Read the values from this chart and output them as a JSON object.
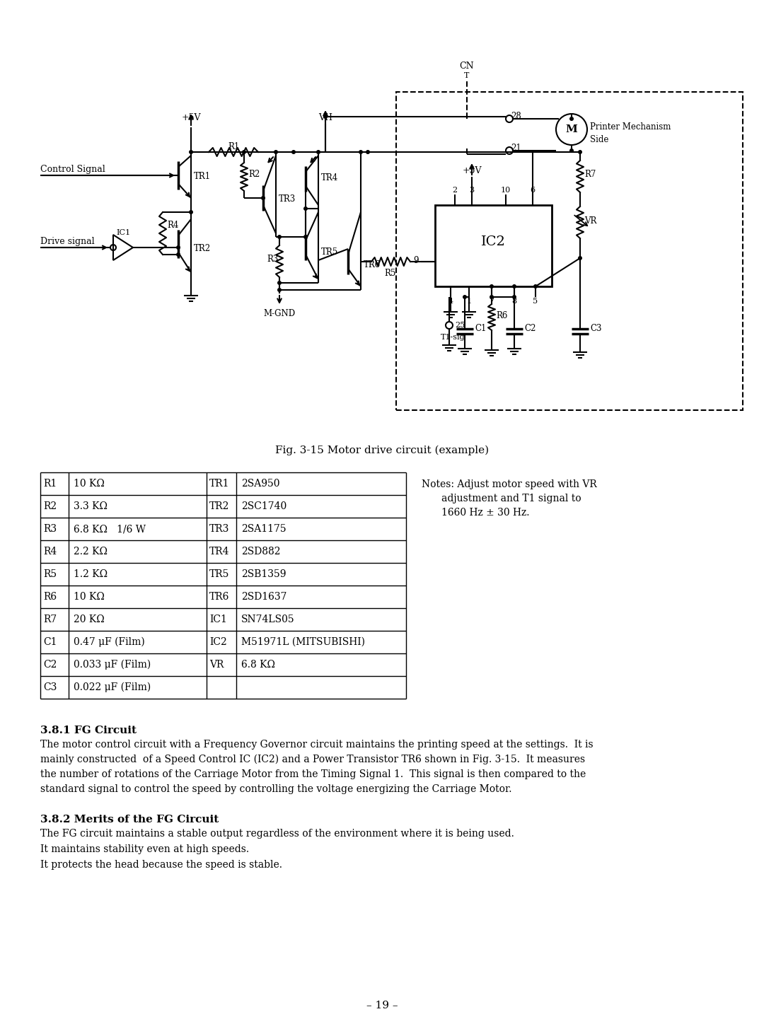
{
  "page_bg": "#ffffff",
  "fig_caption": "Fig. 3-15 Motor drive circuit (example)",
  "table_left": [
    [
      "R1",
      "10 KΩ"
    ],
    [
      "R2",
      "3.3 KΩ"
    ],
    [
      "R3",
      "6.8 KΩ   1/6 W"
    ],
    [
      "R4",
      "2.2 KΩ"
    ],
    [
      "R5",
      "1.2 KΩ"
    ],
    [
      "R6",
      "10 KΩ"
    ],
    [
      "R7",
      "20 KΩ"
    ],
    [
      "C1",
      "0.47 μF (Film)"
    ],
    [
      "C2",
      "0.033 μF (Film)"
    ],
    [
      "C3",
      "0.022 μF (Film)"
    ]
  ],
  "table_right": [
    [
      "TR1",
      "2SA950"
    ],
    [
      "TR2",
      "2SC1740"
    ],
    [
      "TR3",
      "2SA1175"
    ],
    [
      "TR4",
      "2SD882"
    ],
    [
      "TR5",
      "2SB1359"
    ],
    [
      "TR6",
      "2SD1637"
    ],
    [
      "IC1",
      "SN74LS05"
    ],
    [
      "IC2",
      "M51971L (MITSUBISHI)"
    ],
    [
      "VR",
      "6.8 KΩ"
    ],
    [
      "",
      ""
    ]
  ],
  "notes_line1": "Notes: Adjust motor speed with VR",
  "notes_line2": "adjustment and T1 signal to",
  "notes_line3": "1660 Hz ± 30 Hz.",
  "section_381_title": "3.8.1 FG Circuit",
  "section_381_lines": [
    "The motor control circuit with a Frequency Governor circuit maintains the printing speed at the settings.  It is",
    "mainly constructed  of a Speed Control IC (IC2) and a Power Transistor TR6 shown in Fig. 3-15.  It measures",
    "the number of rotations of the Carriage Motor from the Timing Signal 1.  This signal is then compared to the",
    "standard signal to control the speed by controlling the voltage energizing the Carriage Motor."
  ],
  "section_382_title": "3.8.2 Merits of the FG Circuit",
  "section_382_lines": [
    "The FG circuit maintains a stable output regardless of the environment where it is being used.",
    "It maintains stability even at high speeds.",
    "It protects the head because the speed is stable."
  ],
  "page_number": "– 19 –"
}
